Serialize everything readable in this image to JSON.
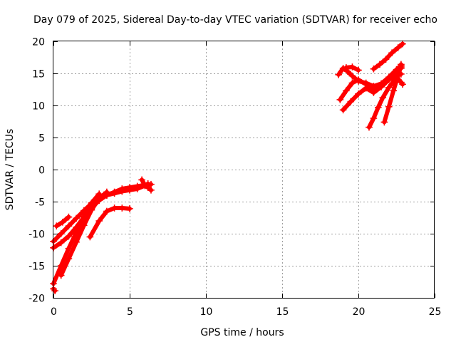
{
  "chart_data": {
    "type": "scatter",
    "title": "Day 079 of 2025, Sidereal Day-to-day VTEC variation (SDTVAR) for receiver echo",
    "xlabel": "GPS time / hours",
    "ylabel": "SDTVAR / TECUs",
    "xlim": [
      0,
      25
    ],
    "ylim": [
      -20,
      20
    ],
    "x_ticks": [
      0,
      5,
      10,
      15,
      20,
      25
    ],
    "y_ticks": [
      -20,
      -15,
      -10,
      -5,
      0,
      5,
      10,
      15,
      20
    ],
    "x_tick_labels": [
      "0",
      "5",
      "10",
      "15",
      "20",
      "25"
    ],
    "y_tick_labels": [
      "-20",
      "-15",
      "-10",
      "-5",
      "0",
      "5",
      "10",
      "15",
      "20"
    ],
    "grid": true,
    "color": "#ff0000",
    "series": [
      {
        "x": [
          0.0,
          0.5,
          1.0,
          1.5,
          2.0,
          2.5,
          3.0,
          3.5,
          4.0
        ],
        "y": [
          -11.2,
          -10.0,
          -8.8,
          -7.6,
          -6.4,
          -5.3,
          -4.5,
          -3.9,
          -3.6
        ]
      },
      {
        "x": [
          0.0,
          0.5,
          1.0,
          1.5,
          2.0,
          2.5,
          3.0,
          3.5,
          4.0,
          4.5,
          5.0,
          5.5,
          6.0,
          6.4
        ],
        "y": [
          -12.2,
          -11.4,
          -10.4,
          -9.0,
          -7.4,
          -6.0,
          -4.8,
          -4.0,
          -3.5,
          -3.0,
          -2.8,
          -2.6,
          -2.4,
          -2.3
        ]
      },
      {
        "x": [
          0.0,
          0.5,
          1.0,
          1.5,
          2.0,
          2.5,
          3.0
        ],
        "y": [
          -17.8,
          -15.0,
          -12.3,
          -9.8,
          -7.3,
          -5.2,
          -3.8
        ]
      },
      {
        "x": [
          0.5,
          1.0,
          1.5,
          2.0,
          2.5,
          3.0,
          3.5
        ],
        "y": [
          -16.5,
          -13.9,
          -11.3,
          -8.7,
          -6.3,
          -4.5,
          -3.5
        ]
      },
      {
        "x": [
          0.2,
          0.6,
          1.0
        ],
        "y": [
          -8.8,
          -8.2,
          -7.4
        ]
      },
      {
        "x": [
          2.4,
          3.0,
          3.5,
          4.0,
          4.5,
          5.0
        ],
        "y": [
          -10.5,
          -8.0,
          -6.5,
          -6.0,
          -6.0,
          -6.1
        ]
      },
      {
        "x": [
          3.0,
          3.5,
          4.0,
          4.5,
          5.0,
          5.5,
          6.0,
          6.2
        ],
        "y": [
          -4.2,
          -4.0,
          -3.7,
          -3.4,
          -3.2,
          -3.0,
          -2.5,
          -2.2
        ]
      },
      {
        "x": [
          5.8,
          6.0,
          6.2,
          6.4
        ],
        "y": [
          -1.6,
          -2.5,
          -2.8,
          -3.2
        ]
      },
      {
        "x": [
          0.0,
          0.1
        ],
        "y": [
          -18.6,
          -18.9
        ]
      },
      {
        "x": [
          18.7,
          19.0,
          19.3,
          19.6,
          20.0,
          20.5,
          21.0,
          21.5,
          22.0,
          22.5,
          22.8
        ],
        "y": [
          14.8,
          15.8,
          15.3,
          14.6,
          13.8,
          13.5,
          13.0,
          13.4,
          14.4,
          15.6,
          16.2
        ]
      },
      {
        "x": [
          18.8,
          19.2,
          19.6,
          20.0,
          20.5,
          21.0,
          21.5,
          22.0,
          22.5,
          22.8
        ],
        "y": [
          10.9,
          12.3,
          13.5,
          14.0,
          13.3,
          12.2,
          13.1,
          14.4,
          15.3,
          15.8
        ]
      },
      {
        "x": [
          19.0,
          19.5,
          20.0,
          20.5,
          21.0,
          21.5,
          22.0,
          22.5,
          22.8
        ],
        "y": [
          9.3,
          10.6,
          11.8,
          12.7,
          12.0,
          12.9,
          14.0,
          14.9,
          14.9
        ]
      },
      {
        "x": [
          20.7,
          21.0,
          21.3,
          21.6,
          22.0,
          22.5,
          22.8
        ],
        "y": [
          6.6,
          8.0,
          9.7,
          11.2,
          12.8,
          14.4,
          16.0
        ]
      },
      {
        "x": [
          21.7,
          22.0,
          22.3,
          22.6,
          22.8
        ],
        "y": [
          7.4,
          9.8,
          12.3,
          14.6,
          16.4
        ]
      },
      {
        "x": [
          21.0,
          21.4,
          21.8,
          22.2,
          22.6,
          22.9
        ],
        "y": [
          15.7,
          16.4,
          17.2,
          18.2,
          19.0,
          19.6
        ]
      },
      {
        "x": [
          19.2,
          19.6,
          20.0
        ],
        "y": [
          15.9,
          16.0,
          15.5
        ]
      },
      {
        "x": [
          22.4,
          22.8,
          22.9
        ],
        "y": [
          14.7,
          13.6,
          13.3
        ]
      }
    ]
  }
}
